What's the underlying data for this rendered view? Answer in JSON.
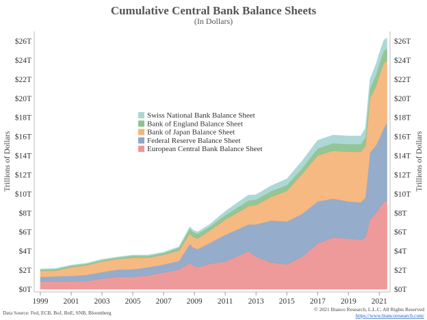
{
  "chart_data": {
    "type": "area",
    "stacked": true,
    "title": "Cumulative Central Bank Balance Sheets",
    "subtitle": "(In Dollars)",
    "ylabel": "Trillions of Dollars",
    "ylabel_right": "Trillions of Dollars",
    "ylim": [
      0,
      26
    ],
    "xlim": [
      1998.6,
      2021.7
    ],
    "yticks": [
      0,
      2,
      4,
      6,
      8,
      10,
      12,
      14,
      16,
      18,
      20,
      22,
      24,
      26
    ],
    "ytick_labels": [
      "$0T",
      "$2T",
      "$4T",
      "$6T",
      "$8T",
      "$10T",
      "$12T",
      "$14T",
      "$16T",
      "$18T",
      "$20T",
      "$22T",
      "$24T",
      "$26T"
    ],
    "xticks": [
      1999,
      2001,
      2003,
      2005,
      2007,
      2009,
      2011,
      2013,
      2015,
      2017,
      2019,
      2021
    ],
    "xtick_labels": [
      "1999",
      "2001",
      "2003",
      "2005",
      "2007",
      "2009",
      "2011",
      "2013",
      "2015",
      "2017",
      "2019",
      "2021"
    ],
    "legend_position": "center-left",
    "x": [
      1999.0,
      2000.0,
      2001.0,
      2002.0,
      2003.0,
      2004.0,
      2005.0,
      2006.0,
      2007.0,
      2008.0,
      2008.7,
      2008.9,
      2009.2,
      2010.0,
      2011.0,
      2012.0,
      2012.5,
      2013.0,
      2014.0,
      2015.0,
      2016.0,
      2017.0,
      2018.0,
      2019.0,
      2019.8,
      2020.1,
      2020.4,
      2020.8,
      2021.0,
      2021.3,
      2021.5
    ],
    "series": [
      {
        "name": "European Central Bank Balance Sheet",
        "color": "#ee9595",
        "values": [
          0.8,
          0.8,
          0.8,
          0.85,
          1.1,
          1.3,
          1.3,
          1.45,
          1.75,
          2.05,
          2.75,
          2.5,
          2.3,
          2.65,
          2.9,
          3.6,
          4.0,
          3.4,
          2.8,
          2.6,
          3.4,
          4.8,
          5.4,
          5.3,
          5.2,
          5.4,
          7.3,
          8.0,
          8.5,
          9.1,
          9.3
        ]
      },
      {
        "name": "Federal Reserve Balance Sheet",
        "color": "#8fa8c8",
        "values": [
          0.5,
          0.55,
          0.6,
          0.65,
          0.7,
          0.75,
          0.8,
          0.85,
          0.85,
          0.9,
          2.0,
          1.9,
          1.9,
          2.2,
          2.8,
          2.8,
          2.8,
          3.4,
          4.4,
          4.5,
          4.5,
          4.4,
          4.1,
          3.9,
          3.9,
          4.2,
          7.0,
          7.1,
          7.3,
          7.8,
          8.1
        ]
      },
      {
        "name": "Bank of Japan Balance Sheet",
        "color": "#f5b57a",
        "values": [
          0.6,
          0.6,
          0.9,
          1.0,
          1.1,
          1.1,
          1.2,
          1.0,
          1.0,
          1.1,
          1.1,
          1.1,
          1.1,
          1.3,
          1.6,
          1.8,
          1.9,
          2.0,
          2.5,
          3.2,
          4.2,
          4.8,
          5.0,
          5.2,
          5.3,
          5.4,
          5.7,
          6.2,
          6.6,
          6.8,
          6.5
        ]
      },
      {
        "name": "Bank of England Balance Sheet",
        "color": "#8ec28e",
        "values": [
          0.15,
          0.15,
          0.15,
          0.15,
          0.15,
          0.15,
          0.2,
          0.2,
          0.2,
          0.3,
          0.5,
          0.5,
          0.5,
          0.4,
          0.45,
          0.55,
          0.6,
          0.6,
          0.6,
          0.6,
          0.6,
          0.75,
          0.8,
          0.8,
          0.8,
          0.9,
          1.0,
          1.2,
          1.2,
          1.3,
          1.3
        ]
      },
      {
        "name": "Swiss National Bank Balance Sheet",
        "color": "#a9d6d4",
        "values": [
          0.08,
          0.08,
          0.08,
          0.08,
          0.08,
          0.08,
          0.08,
          0.08,
          0.08,
          0.1,
          0.2,
          0.2,
          0.2,
          0.25,
          0.4,
          0.55,
          0.55,
          0.5,
          0.55,
          0.65,
          0.75,
          0.85,
          0.85,
          0.85,
          0.85,
          0.95,
          1.0,
          1.1,
          1.1,
          1.1,
          1.1
        ]
      }
    ]
  },
  "footer": {
    "source": "Data Source: Fed, ECB, BoJ, BoE, SNB, Bloomberg",
    "copyright": "© 2021 Bianco Research, L.L.C. All Rights Reserved",
    "link": "https://www.biancoresearch.com/"
  }
}
